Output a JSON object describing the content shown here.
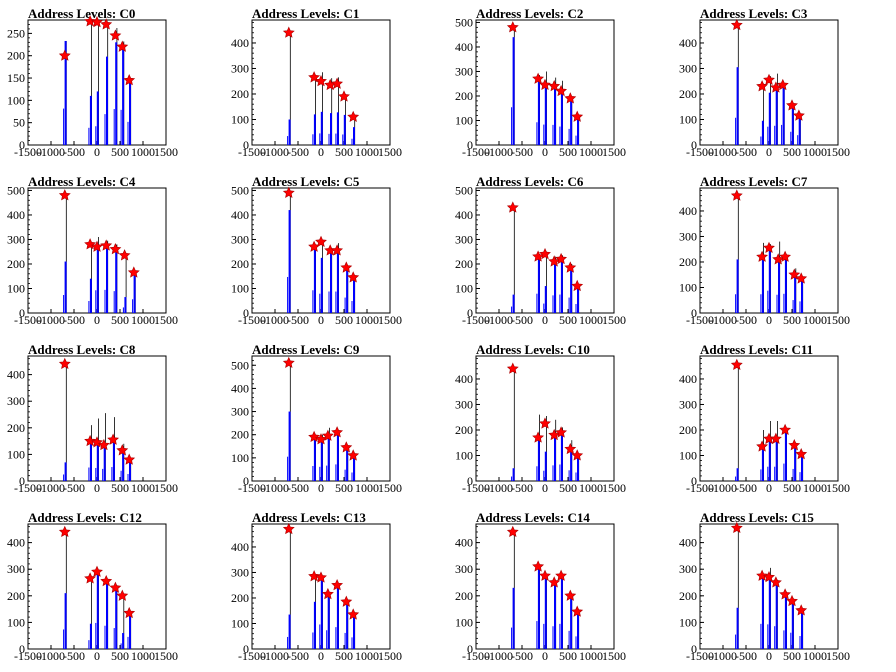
{
  "colors": {
    "bar": "#0000ff",
    "stem": "#000000",
    "marker": "#ff0000",
    "frame": "#000000"
  },
  "chart_data": [
    {
      "type": "bar",
      "title": "Address Levels: C0",
      "xlim": [
        -1500,
        1500
      ],
      "ylim": [
        0,
        280
      ],
      "yticks": [
        0,
        50,
        100,
        150,
        200,
        250
      ],
      "xticks": [
        -1500,
        -1000,
        -500,
        0,
        500,
        1000,
        1500
      ],
      "peaks": [
        {
          "x": -700,
          "marker": 200,
          "bar": 233,
          "stem": 233
        },
        {
          "x": -150,
          "marker": 277,
          "bar": 110,
          "stem": 277
        },
        {
          "x": 0,
          "marker": 275,
          "bar": 120,
          "stem": 280
        },
        {
          "x": 200,
          "marker": 270,
          "bar": 198,
          "stem": 272
        },
        {
          "x": 400,
          "marker": 245,
          "bar": 230,
          "stem": 262
        },
        {
          "x": 550,
          "marker": 220,
          "bar": 225,
          "stem": 232
        },
        {
          "x": 700,
          "marker": 145,
          "bar": 148,
          "stem": 150
        }
      ]
    },
    {
      "type": "bar",
      "title": "Address Levels: C1",
      "xlim": [
        -1500,
        1500
      ],
      "ylim": [
        0,
        490
      ],
      "yticks": [
        0,
        100,
        200,
        300,
        400
      ],
      "xticks": [
        -1500,
        -1000,
        -500,
        0,
        500,
        1000,
        1500
      ],
      "peaks": [
        {
          "x": -700,
          "marker": 440,
          "bar": 100,
          "stem": 440
        },
        {
          "x": -150,
          "marker": 265,
          "bar": 120,
          "stem": 265
        },
        {
          "x": 0,
          "marker": 250,
          "bar": 130,
          "stem": 285
        },
        {
          "x": 200,
          "marker": 235,
          "bar": 125,
          "stem": 262
        },
        {
          "x": 350,
          "marker": 240,
          "bar": 128,
          "stem": 265
        },
        {
          "x": 500,
          "marker": 190,
          "bar": 118,
          "stem": 200
        },
        {
          "x": 700,
          "marker": 110,
          "bar": 70,
          "stem": 110
        }
      ]
    },
    {
      "type": "bar",
      "title": "Address Levels: C2",
      "xlim": [
        -1500,
        1500
      ],
      "ylim": [
        0,
        510
      ],
      "yticks": [
        0,
        100,
        200,
        300,
        400,
        500
      ],
      "xticks": [
        -1500,
        -1000,
        -500,
        0,
        500,
        1000,
        1500
      ],
      "peaks": [
        {
          "x": -700,
          "marker": 480,
          "bar": 440,
          "stem": 480
        },
        {
          "x": -150,
          "marker": 270,
          "bar": 265,
          "stem": 285
        },
        {
          "x": 0,
          "marker": 245,
          "bar": 238,
          "stem": 300
        },
        {
          "x": 200,
          "marker": 240,
          "bar": 235,
          "stem": 275
        },
        {
          "x": 350,
          "marker": 220,
          "bar": 215,
          "stem": 262
        },
        {
          "x": 550,
          "marker": 190,
          "bar": 188,
          "stem": 195
        },
        {
          "x": 700,
          "marker": 115,
          "bar": 110,
          "stem": 118
        }
      ]
    },
    {
      "type": "bar",
      "title": "Address Levels: C3",
      "xlim": [
        -1500,
        1500
      ],
      "ylim": [
        0,
        490
      ],
      "yticks": [
        0,
        100,
        200,
        300,
        400
      ],
      "xticks": [
        -1500,
        -1000,
        -500,
        0,
        500,
        1000,
        1500
      ],
      "peaks": [
        {
          "x": -700,
          "marker": 470,
          "bar": 305,
          "stem": 470
        },
        {
          "x": -150,
          "marker": 230,
          "bar": 95,
          "stem": 240
        },
        {
          "x": 0,
          "marker": 255,
          "bar": 205,
          "stem": 270
        },
        {
          "x": 150,
          "marker": 225,
          "bar": 215,
          "stem": 280
        },
        {
          "x": 300,
          "marker": 235,
          "bar": 225,
          "stem": 240
        },
        {
          "x": 500,
          "marker": 155,
          "bar": 148,
          "stem": 160
        },
        {
          "x": 650,
          "marker": 115,
          "bar": 110,
          "stem": 118
        }
      ]
    },
    {
      "type": "bar",
      "title": "Address Levels: C4",
      "xlim": [
        -1500,
        1500
      ],
      "ylim": [
        0,
        510
      ],
      "yticks": [
        0,
        100,
        200,
        300,
        400,
        500
      ],
      "xticks": [
        -1500,
        -1000,
        -500,
        0,
        500,
        1000,
        1500
      ],
      "peaks": [
        {
          "x": -700,
          "marker": 480,
          "bar": 210,
          "stem": 480
        },
        {
          "x": -150,
          "marker": 280,
          "bar": 140,
          "stem": 285
        },
        {
          "x": 0,
          "marker": 270,
          "bar": 265,
          "stem": 310
        },
        {
          "x": 200,
          "marker": 275,
          "bar": 270,
          "stem": 295
        },
        {
          "x": 400,
          "marker": 260,
          "bar": 255,
          "stem": 280
        },
        {
          "x": 600,
          "marker": 235,
          "bar": 65,
          "stem": 240
        },
        {
          "x": 800,
          "marker": 165,
          "bar": 160,
          "stem": 170
        }
      ]
    },
    {
      "type": "bar",
      "title": "Address Levels: C5",
      "xlim": [
        -1500,
        1500
      ],
      "ylim": [
        0,
        510
      ],
      "yticks": [
        0,
        100,
        200,
        300,
        400,
        500
      ],
      "xticks": [
        -1500,
        -1000,
        -500,
        0,
        500,
        1000,
        1500
      ],
      "peaks": [
        {
          "x": -700,
          "marker": 490,
          "bar": 420,
          "stem": 490
        },
        {
          "x": -150,
          "marker": 270,
          "bar": 265,
          "stem": 280
        },
        {
          "x": 0,
          "marker": 290,
          "bar": 225,
          "stem": 290
        },
        {
          "x": 200,
          "marker": 255,
          "bar": 250,
          "stem": 258
        },
        {
          "x": 350,
          "marker": 255,
          "bar": 250,
          "stem": 285
        },
        {
          "x": 550,
          "marker": 185,
          "bar": 180,
          "stem": 190
        },
        {
          "x": 700,
          "marker": 145,
          "bar": 140,
          "stem": 148
        }
      ]
    },
    {
      "type": "bar",
      "title": "Address Levels: C6",
      "xlim": [
        -1500,
        1500
      ],
      "ylim": [
        0,
        510
      ],
      "yticks": [
        0,
        100,
        200,
        300,
        400,
        500
      ],
      "xticks": [
        -1500,
        -1000,
        -500,
        0,
        500,
        1000,
        1500
      ],
      "peaks": [
        {
          "x": -700,
          "marker": 430,
          "bar": 75,
          "stem": 430
        },
        {
          "x": -150,
          "marker": 230,
          "bar": 225,
          "stem": 240
        },
        {
          "x": 0,
          "marker": 240,
          "bar": 110,
          "stem": 250
        },
        {
          "x": 200,
          "marker": 210,
          "bar": 205,
          "stem": 230
        },
        {
          "x": 350,
          "marker": 220,
          "bar": 215,
          "stem": 235
        },
        {
          "x": 550,
          "marker": 185,
          "bar": 180,
          "stem": 200
        },
        {
          "x": 700,
          "marker": 110,
          "bar": 105,
          "stem": 115
        }
      ]
    },
    {
      "type": "bar",
      "title": "Address Levels: C7",
      "xlim": [
        -1500,
        1500
      ],
      "ylim": [
        0,
        490
      ],
      "yticks": [
        0,
        100,
        200,
        300,
        400
      ],
      "xticks": [
        -1500,
        -1000,
        -500,
        0,
        500,
        1000,
        1500
      ],
      "peaks": [
        {
          "x": -700,
          "marker": 460,
          "bar": 210,
          "stem": 460
        },
        {
          "x": -150,
          "marker": 220,
          "bar": 210,
          "stem": 275
        },
        {
          "x": 0,
          "marker": 255,
          "bar": 250,
          "stem": 270
        },
        {
          "x": 200,
          "marker": 210,
          "bar": 205,
          "stem": 280
        },
        {
          "x": 350,
          "marker": 220,
          "bar": 215,
          "stem": 230
        },
        {
          "x": 550,
          "marker": 150,
          "bar": 145,
          "stem": 175
        },
        {
          "x": 700,
          "marker": 135,
          "bar": 130,
          "stem": 140
        }
      ]
    },
    {
      "type": "bar",
      "title": "Address Levels: C8",
      "xlim": [
        -1500,
        1500
      ],
      "ylim": [
        0,
        470
      ],
      "yticks": [
        0,
        100,
        200,
        300,
        400
      ],
      "xticks": [
        -1500,
        -1000,
        -500,
        0,
        500,
        1000,
        1500
      ],
      "peaks": [
        {
          "x": -700,
          "marker": 440,
          "bar": 70,
          "stem": 440
        },
        {
          "x": -150,
          "marker": 150,
          "bar": 145,
          "stem": 210
        },
        {
          "x": 0,
          "marker": 145,
          "bar": 140,
          "stem": 235
        },
        {
          "x": 150,
          "marker": 135,
          "bar": 130,
          "stem": 255
        },
        {
          "x": 350,
          "marker": 155,
          "bar": 150,
          "stem": 240
        },
        {
          "x": 550,
          "marker": 115,
          "bar": 110,
          "stem": 140
        },
        {
          "x": 700,
          "marker": 80,
          "bar": 75,
          "stem": 85
        }
      ]
    },
    {
      "type": "bar",
      "title": "Address Levels: C9",
      "xlim": [
        -1500,
        1500
      ],
      "ylim": [
        0,
        540
      ],
      "yticks": [
        0,
        100,
        200,
        300,
        400,
        500
      ],
      "xticks": [
        -1500,
        -1000,
        -500,
        0,
        500,
        1000,
        1500
      ],
      "peaks": [
        {
          "x": -700,
          "marker": 510,
          "bar": 300,
          "stem": 510
        },
        {
          "x": -150,
          "marker": 190,
          "bar": 185,
          "stem": 200
        },
        {
          "x": 0,
          "marker": 180,
          "bar": 175,
          "stem": 200
        },
        {
          "x": 150,
          "marker": 195,
          "bar": 190,
          "stem": 230
        },
        {
          "x": 350,
          "marker": 210,
          "bar": 205,
          "stem": 215
        },
        {
          "x": 550,
          "marker": 145,
          "bar": 140,
          "stem": 150
        },
        {
          "x": 700,
          "marker": 110,
          "bar": 105,
          "stem": 115
        }
      ]
    },
    {
      "type": "bar",
      "title": "Address Levels: C10",
      "xlim": [
        -1500,
        1500
      ],
      "ylim": [
        0,
        490
      ],
      "yticks": [
        0,
        100,
        200,
        300,
        400
      ],
      "xticks": [
        -1500,
        -1000,
        -500,
        0,
        500,
        1000,
        1500
      ],
      "peaks": [
        {
          "x": -700,
          "marker": 440,
          "bar": 50,
          "stem": 440
        },
        {
          "x": -150,
          "marker": 170,
          "bar": 165,
          "stem": 260
        },
        {
          "x": 0,
          "marker": 225,
          "bar": 115,
          "stem": 255
        },
        {
          "x": 200,
          "marker": 180,
          "bar": 175,
          "stem": 240
        },
        {
          "x": 350,
          "marker": 190,
          "bar": 185,
          "stem": 210
        },
        {
          "x": 550,
          "marker": 125,
          "bar": 120,
          "stem": 160
        },
        {
          "x": 700,
          "marker": 100,
          "bar": 95,
          "stem": 105
        }
      ]
    },
    {
      "type": "bar",
      "title": "Address Levels: C11",
      "xlim": [
        -1500,
        1500
      ],
      "ylim": [
        0,
        490
      ],
      "yticks": [
        0,
        100,
        200,
        300,
        400
      ],
      "xticks": [
        -1500,
        -1000,
        -500,
        0,
        500,
        1000,
        1500
      ],
      "peaks": [
        {
          "x": -700,
          "marker": 455,
          "bar": 50,
          "stem": 455
        },
        {
          "x": -150,
          "marker": 135,
          "bar": 130,
          "stem": 200
        },
        {
          "x": 0,
          "marker": 165,
          "bar": 160,
          "stem": 235
        },
        {
          "x": 150,
          "marker": 165,
          "bar": 160,
          "stem": 235
        },
        {
          "x": 350,
          "marker": 200,
          "bar": 195,
          "stem": 205
        },
        {
          "x": 550,
          "marker": 140,
          "bar": 135,
          "stem": 150
        },
        {
          "x": 700,
          "marker": 105,
          "bar": 100,
          "stem": 110
        }
      ]
    },
    {
      "type": "bar",
      "title": "Address Levels: C12",
      "xlim": [
        -1500,
        1500
      ],
      "ylim": [
        0,
        470
      ],
      "yticks": [
        0,
        100,
        200,
        300,
        400
      ],
      "xticks": [
        -1500,
        -1000,
        -500,
        0,
        500,
        1000,
        1500
      ],
      "peaks": [
        {
          "x": -700,
          "marker": 440,
          "bar": 210,
          "stem": 440
        },
        {
          "x": -150,
          "marker": 265,
          "bar": 95,
          "stem": 270
        },
        {
          "x": 0,
          "marker": 290,
          "bar": 280,
          "stem": 295
        },
        {
          "x": 200,
          "marker": 255,
          "bar": 250,
          "stem": 260
        },
        {
          "x": 400,
          "marker": 230,
          "bar": 225,
          "stem": 240
        },
        {
          "x": 550,
          "marker": 200,
          "bar": 60,
          "stem": 205
        },
        {
          "x": 700,
          "marker": 135,
          "bar": 130,
          "stem": 140
        }
      ]
    },
    {
      "type": "bar",
      "title": "Address Levels: C13",
      "xlim": [
        -1500,
        1500
      ],
      "ylim": [
        0,
        490
      ],
      "yticks": [
        0,
        100,
        200,
        300,
        400
      ],
      "xticks": [
        -1500,
        -1000,
        -500,
        0,
        500,
        1000,
        1500
      ],
      "peaks": [
        {
          "x": -700,
          "marker": 470,
          "bar": 135,
          "stem": 470
        },
        {
          "x": -150,
          "marker": 285,
          "bar": 185,
          "stem": 285
        },
        {
          "x": 0,
          "marker": 280,
          "bar": 275,
          "stem": 285
        },
        {
          "x": 150,
          "marker": 215,
          "bar": 210,
          "stem": 220
        },
        {
          "x": 350,
          "marker": 250,
          "bar": 245,
          "stem": 255
        },
        {
          "x": 550,
          "marker": 185,
          "bar": 180,
          "stem": 190
        },
        {
          "x": 700,
          "marker": 135,
          "bar": 130,
          "stem": 140
        }
      ]
    },
    {
      "type": "bar",
      "title": "Address Levels: C14",
      "xlim": [
        -1500,
        1500
      ],
      "ylim": [
        0,
        470
      ],
      "yticks": [
        0,
        100,
        200,
        300,
        400
      ],
      "xticks": [
        -1500,
        -1000,
        -500,
        0,
        500,
        1000,
        1500
      ],
      "peaks": [
        {
          "x": -700,
          "marker": 440,
          "bar": 230,
          "stem": 440
        },
        {
          "x": -150,
          "marker": 310,
          "bar": 300,
          "stem": 315
        },
        {
          "x": 0,
          "marker": 275,
          "bar": 270,
          "stem": 280
        },
        {
          "x": 200,
          "marker": 250,
          "bar": 245,
          "stem": 255
        },
        {
          "x": 350,
          "marker": 275,
          "bar": 270,
          "stem": 280
        },
        {
          "x": 550,
          "marker": 200,
          "bar": 195,
          "stem": 205
        },
        {
          "x": 700,
          "marker": 140,
          "bar": 135,
          "stem": 145
        }
      ]
    },
    {
      "type": "bar",
      "title": "Address Levels: C15",
      "xlim": [
        -1500,
        1500
      ],
      "ylim": [
        0,
        470
      ],
      "yticks": [
        0,
        100,
        200,
        300,
        400
      ],
      "xticks": [
        -1500,
        -1000,
        -500,
        0,
        500,
        1000,
        1500
      ],
      "peaks": [
        {
          "x": -700,
          "marker": 455,
          "bar": 155,
          "stem": 455
        },
        {
          "x": -150,
          "marker": 275,
          "bar": 270,
          "stem": 280
        },
        {
          "x": 0,
          "marker": 270,
          "bar": 265,
          "stem": 305
        },
        {
          "x": 150,
          "marker": 250,
          "bar": 245,
          "stem": 260
        },
        {
          "x": 350,
          "marker": 205,
          "bar": 200,
          "stem": 215
        },
        {
          "x": 500,
          "marker": 180,
          "bar": 175,
          "stem": 190
        },
        {
          "x": 700,
          "marker": 145,
          "bar": 140,
          "stem": 150
        }
      ]
    }
  ]
}
